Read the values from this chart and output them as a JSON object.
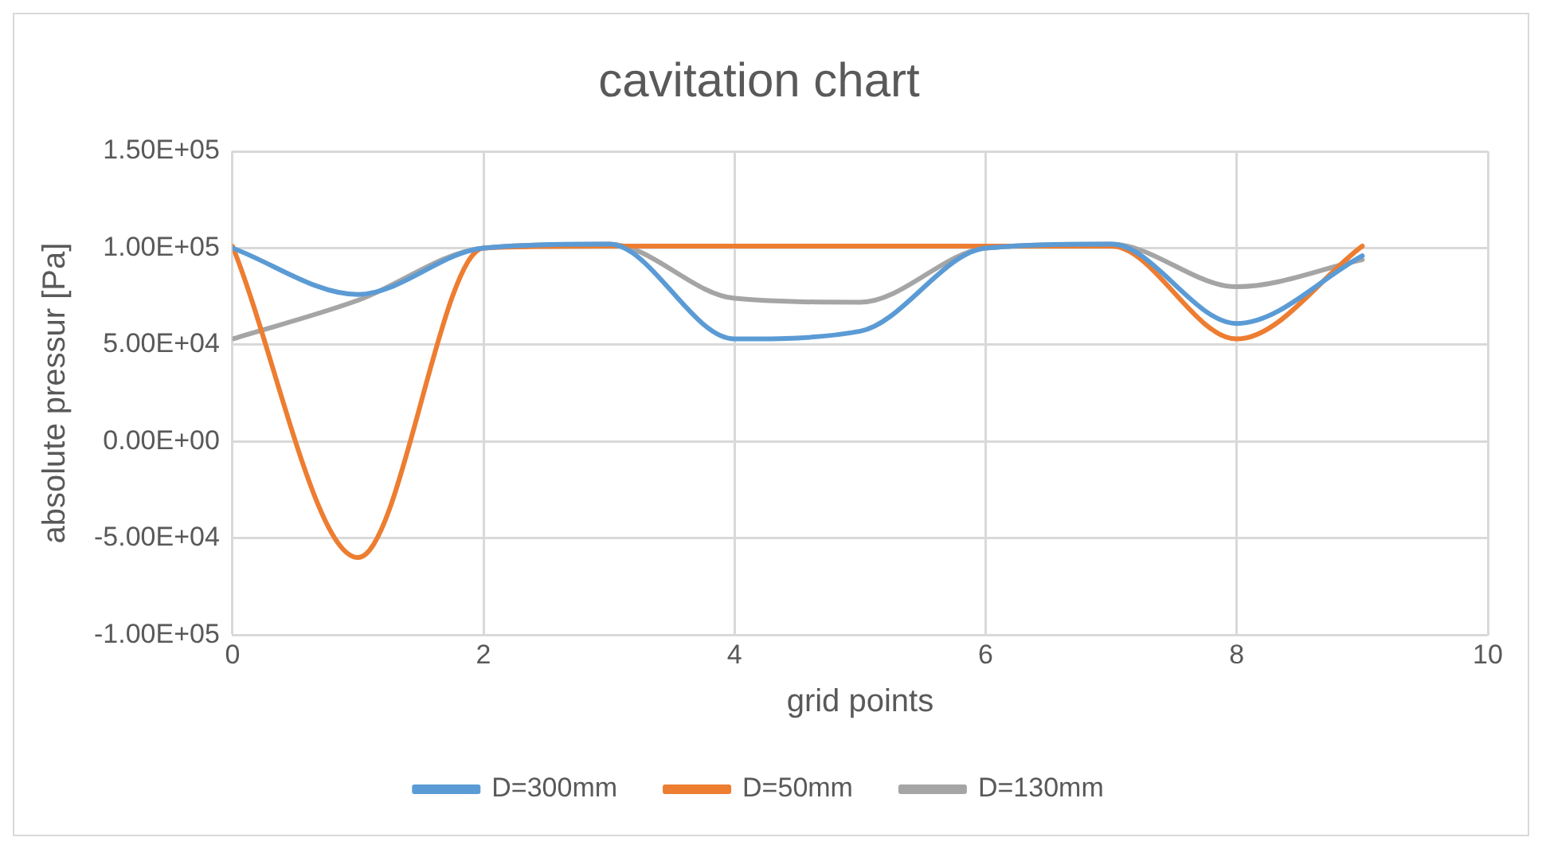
{
  "chart_data": {
    "type": "line",
    "title": "cavitation chart",
    "xlabel": "grid points",
    "ylabel": "absolute pressur [Pa]",
    "x": [
      0,
      1,
      2,
      3,
      4,
      5,
      6,
      7,
      8,
      9
    ],
    "series": [
      {
        "name": "D=300mm",
        "color": "#5b9bd5",
        "values": [
          100000,
          76000,
          100000,
          102000,
          53000,
          57000,
          100000,
          102000,
          61000,
          96000
        ]
      },
      {
        "name": "D=50mm",
        "color": "#ed7d31",
        "values": [
          101000,
          -60000,
          100000,
          101000,
          101000,
          101000,
          101000,
          101000,
          53000,
          101000
        ]
      },
      {
        "name": "D=130mm",
        "color": "#a5a5a5",
        "values": [
          53000,
          73000,
          100000,
          102000,
          74000,
          72000,
          100000,
          102000,
          80000,
          94000
        ]
      }
    ],
    "xlim": [
      0,
      10
    ],
    "xticks": [
      0,
      2,
      4,
      6,
      8,
      10
    ],
    "ylim": [
      -100000,
      150000
    ],
    "yticks": [
      {
        "value": -100000,
        "label": "-1.00E+05"
      },
      {
        "value": -50000,
        "label": "-5.00E+04"
      },
      {
        "value": 0,
        "label": "0.00E+00"
      },
      {
        "value": 50000,
        "label": "5.00E+04"
      },
      {
        "value": 100000,
        "label": "1.00E+05"
      },
      {
        "value": 150000,
        "label": "1.50E+05"
      }
    ],
    "grid": true,
    "legend": "bottom",
    "marker": "none",
    "line_style": "solid"
  }
}
